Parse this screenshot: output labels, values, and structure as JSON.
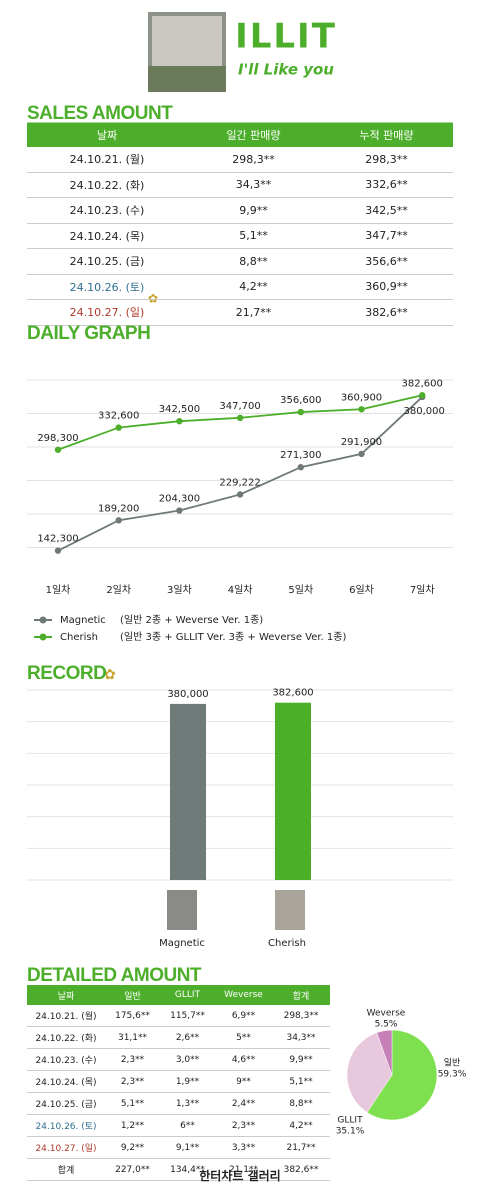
{
  "header": {
    "logo": "ILLIT",
    "subtitle": "I'll Like you"
  },
  "sales": {
    "title": "SALES AMOUNT",
    "columns": [
      "날짜",
      "일간 판매량",
      "누적 판매량"
    ],
    "rows": [
      [
        "24.10.21. (월)",
        "298,3**",
        "298,3**"
      ],
      [
        "24.10.22. (화)",
        "34,3**",
        "332,6**"
      ],
      [
        "24.10.23. (수)",
        "9,9**",
        "342,5**"
      ],
      [
        "24.10.24. (목)",
        "5,1**",
        "347,7**"
      ],
      [
        "24.10.25. (금)",
        "8,8**",
        "356,6**"
      ],
      [
        "24.10.26. (토)",
        "4,2**",
        "360,9**"
      ],
      [
        "24.10.27. (일)",
        "21,7**",
        "382,6**"
      ]
    ]
  },
  "chart_data": [
    {
      "type": "line",
      "title": "DAILY GRAPH",
      "categories": [
        "1일차",
        "2일차",
        "3일차",
        "4일차",
        "5일차",
        "6일차",
        "7일차"
      ],
      "ylim": [
        100000,
        400000
      ],
      "grid": true,
      "series": [
        {
          "name": "Magnetic",
          "note": "(일반 2종 + Weverse Ver. 1종)",
          "color": "#6f7976",
          "values": [
            142300,
            189200,
            204300,
            229222,
            271300,
            291900,
            380000
          ],
          "value_labels": [
            "142,300",
            "189,200",
            "204,300",
            "229,222",
            "271,300",
            "291,900",
            "380,000"
          ]
        },
        {
          "name": "Cherish",
          "note": "(일반 3종 + GLLIT Ver. 3종 + Weverse Ver. 1종)",
          "color": "#4cae2a",
          "values": [
            298300,
            332600,
            342500,
            347700,
            356600,
            360900,
            382600
          ],
          "value_labels": [
            "298,300",
            "332,600",
            "342,500",
            "347,700",
            "356,600",
            "360,900",
            "382,600"
          ]
        }
      ]
    },
    {
      "type": "bar",
      "title": "RECORD",
      "categories": [
        "Magnetic",
        "Cherish"
      ],
      "values": [
        380000,
        382600
      ],
      "value_labels": [
        "380,000",
        "382,600"
      ],
      "colors": [
        "#6e7b78",
        "#4caf28"
      ],
      "ylim": [
        0,
        410000
      ],
      "grid": true
    },
    {
      "type": "pie",
      "categories": [
        "일반",
        "GLLIT",
        "Weverse"
      ],
      "values": [
        59.3,
        35.1,
        5.5
      ],
      "value_labels": [
        "59.3%",
        "35.1%",
        "5.5%"
      ],
      "colors": [
        "#7ee04f",
        "#e8c8dd",
        "#c77fb7"
      ]
    }
  ],
  "detail": {
    "title": "DETAILED AMOUNT",
    "columns": [
      "날짜",
      "일반",
      "GLLIT",
      "Weverse",
      "합계"
    ],
    "rows": [
      [
        "24.10.21. (월)",
        "175,6**",
        "115,7**",
        "6,9**",
        "298,3**"
      ],
      [
        "24.10.22. (화)",
        "31,1**",
        "2,6**",
        "5**",
        "34,3**"
      ],
      [
        "24.10.23. (수)",
        "2,3**",
        "3,0**",
        "4,6**",
        "9,9**"
      ],
      [
        "24.10.24. (목)",
        "2,3**",
        "1,9**",
        "9**",
        "5,1**"
      ],
      [
        "24.10.25. (금)",
        "5,1**",
        "1,3**",
        "2,4**",
        "8,8**"
      ],
      [
        "24.10.26. (토)",
        "1,2**",
        "6**",
        "2,3**",
        "4,2**"
      ],
      [
        "24.10.27. (일)",
        "9,2**",
        "9,1**",
        "3,3**",
        "21,7**"
      ],
      [
        "합계",
        "227,0**",
        "134,4**",
        "21,1**",
        "382,6**"
      ]
    ]
  },
  "footer": "한터차트 갤러리"
}
